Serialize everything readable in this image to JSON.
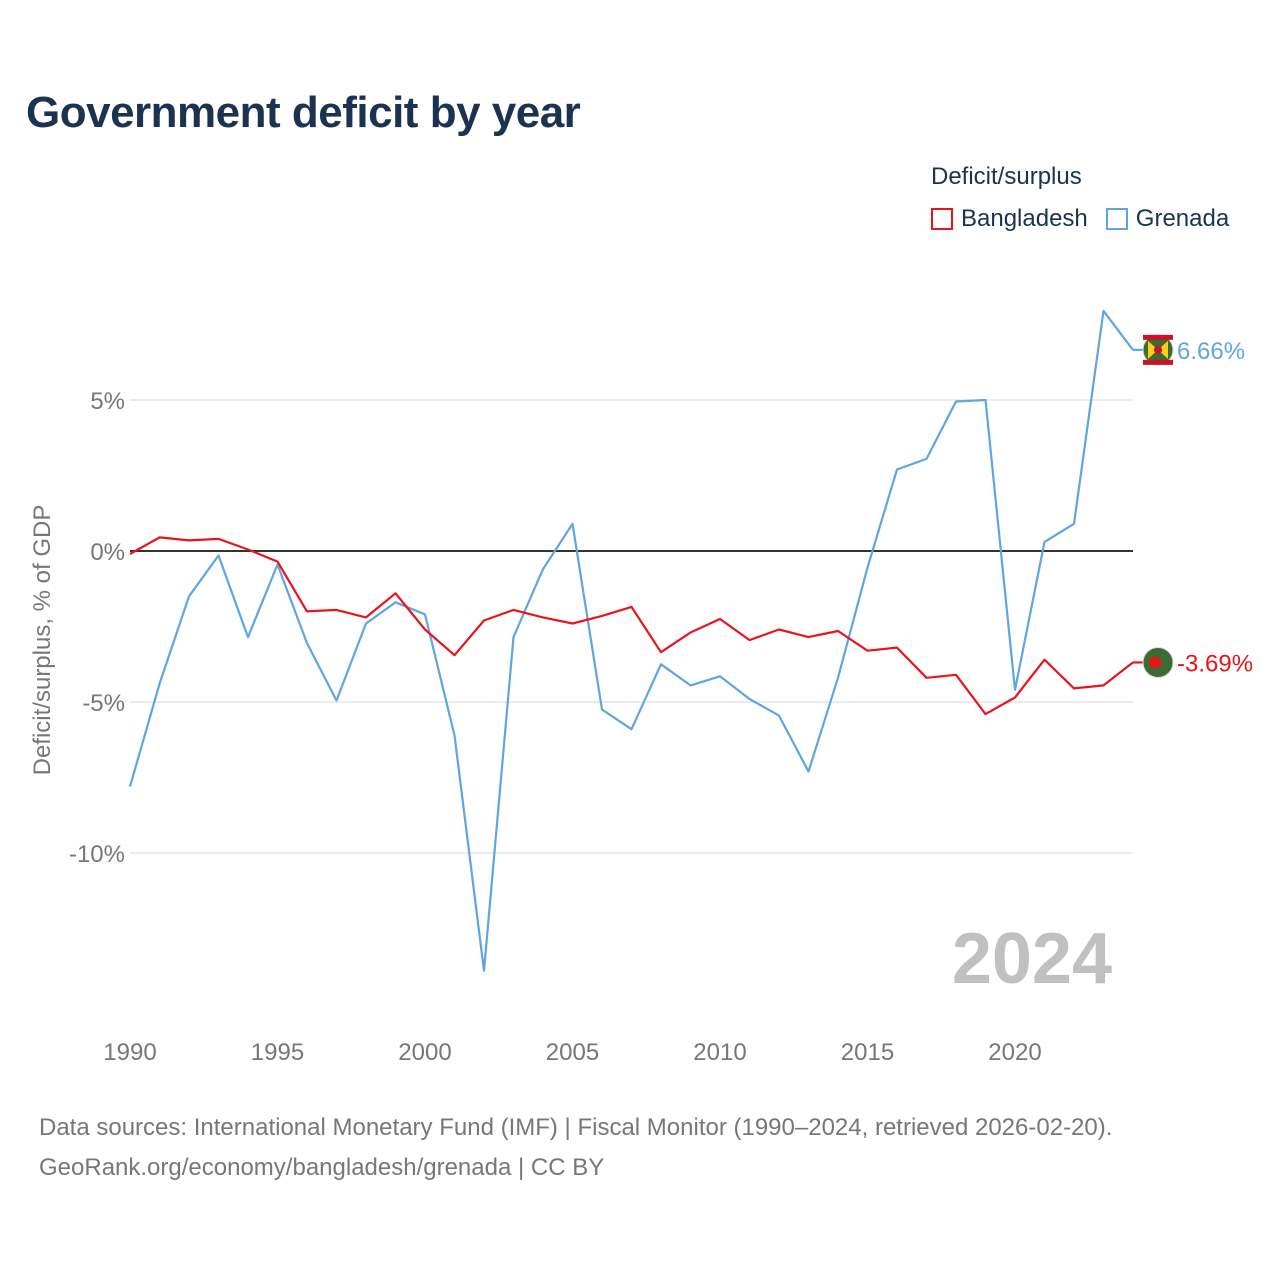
{
  "title": "Government deficit by year",
  "legend": {
    "title": "Deficit/surplus",
    "items": [
      {
        "label": "Bangladesh",
        "color": "#e8141c"
      },
      {
        "label": "Grenada",
        "color": "#5fa5e2"
      }
    ]
  },
  "year_watermark": "2024",
  "footer": {
    "line1": "Data sources: International Monetary Fund (IMF) | Fiscal Monitor (1990–2024, retrieved 2026-02-20).",
    "line2": "GeoRank.org/economy/bangladesh/grenada | CC BY"
  },
  "chart_data": {
    "type": "line",
    "title": "Government deficit by year",
    "xlabel": "",
    "ylabel": "Deficit/surplus, % of GDP",
    "xlim": [
      1990,
      2024
    ],
    "ylim": [
      -15.5,
      8
    ],
    "x_ticks": [
      1990,
      1995,
      2000,
      2005,
      2010,
      2015,
      2020
    ],
    "x_tick_labels": [
      "1990",
      "1995",
      "2000",
      "2005",
      "2010",
      "2015",
      "2020"
    ],
    "y_ticks": [
      5,
      0,
      -5,
      -10
    ],
    "y_tick_labels": [
      "5%",
      "0%",
      "-5%",
      "-10%"
    ],
    "grid": true,
    "zero_line": true,
    "x": [
      1990,
      1991,
      1992,
      1993,
      1994,
      1995,
      1996,
      1997,
      1998,
      1999,
      2000,
      2001,
      2002,
      2003,
      2004,
      2005,
      2006,
      2007,
      2008,
      2009,
      2010,
      2011,
      2012,
      2013,
      2014,
      2015,
      2016,
      2017,
      2018,
      2019,
      2020,
      2021,
      2022,
      2023,
      2024
    ],
    "series": [
      {
        "name": "Bangladesh",
        "color": "#e8141c",
        "end_label": "-3.69%",
        "values": [
          -0.1,
          0.45,
          0.35,
          0.4,
          0.05,
          -0.35,
          -2.0,
          -1.95,
          -2.2,
          -1.4,
          -2.6,
          -3.45,
          -2.3,
          -1.95,
          -2.2,
          -2.4,
          -2.15,
          -1.85,
          -3.35,
          -2.7,
          -2.25,
          -2.95,
          -2.6,
          -2.85,
          -2.65,
          -3.3,
          -3.2,
          -4.2,
          -4.1,
          -5.4,
          -4.85,
          -3.6,
          -4.55,
          -4.45,
          -3.69
        ]
      },
      {
        "name": "Grenada",
        "color": "#5fa5e2",
        "end_label": "6.66%",
        "values": [
          -7.8,
          -4.4,
          -1.5,
          -0.15,
          -2.85,
          -0.45,
          -3.05,
          -4.95,
          -2.4,
          -1.7,
          -2.1,
          -6.1,
          -13.9,
          -2.85,
          -0.6,
          0.9,
          -5.25,
          -5.9,
          -3.75,
          -4.45,
          -4.15,
          -4.9,
          -5.45,
          -7.3,
          -4.2,
          -0.55,
          2.7,
          3.05,
          4.95,
          5.0,
          -4.6,
          0.3,
          0.9,
          7.95,
          6.66
        ]
      }
    ]
  }
}
